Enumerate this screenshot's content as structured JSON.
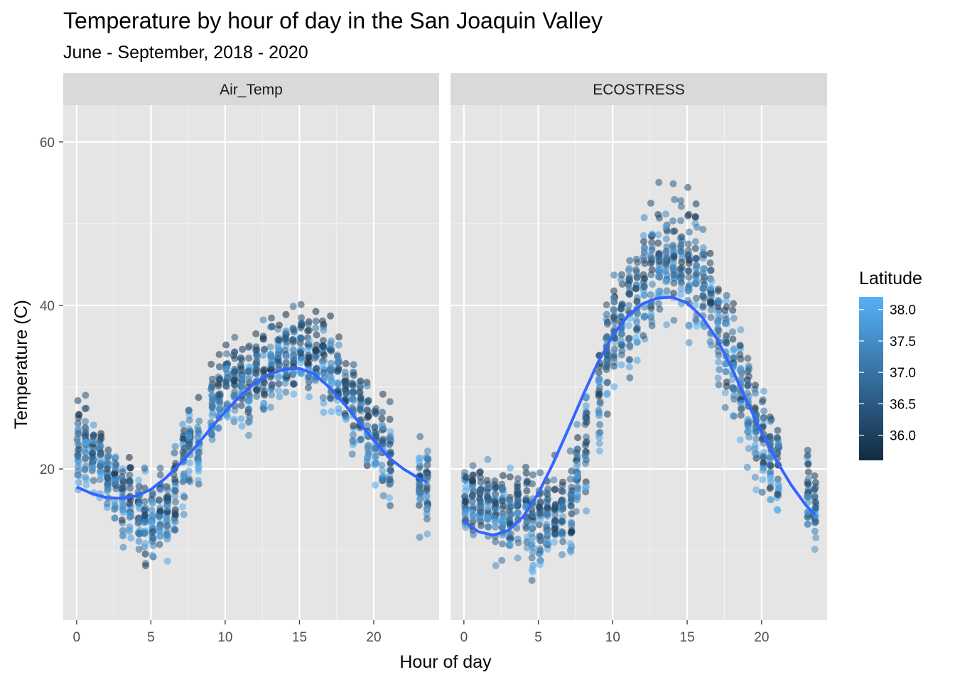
{
  "chart_data": {
    "type": "scatter",
    "title": "Temperature by hour of day in the San Joaquin Valley",
    "subtitle": "June - September, 2018 - 2020",
    "xlabel": "Hour of day",
    "ylabel": "Temperature (C)",
    "xlim": [
      -0.9,
      24.4
    ],
    "ylim": [
      1.5,
      64.5
    ],
    "x_ticks": [
      0,
      5,
      10,
      15,
      20
    ],
    "y_ticks": [
      20,
      40,
      60
    ],
    "grid": true,
    "point_color_scale": {
      "low": "#132B43",
      "high": "#56B1F7"
    },
    "smooth_color": "#3366FF",
    "panel_background": "#e5e5e5",
    "strip_background": "#d9d9d9",
    "legend": {
      "title": "Latitude",
      "position": "right",
      "range": [
        35.6,
        38.2
      ],
      "ticks": [
        "36.0",
        "36.5",
        "37.0",
        "37.5",
        "38.0"
      ],
      "tick_values": [
        36.0,
        36.5,
        37.0,
        37.5,
        38.0
      ]
    },
    "panels": [
      {
        "label": "Air_Temp",
        "hours": [
          0.1,
          0.6,
          1.1,
          1.6,
          2.1,
          2.6,
          3.1,
          3.6,
          4.2,
          4.6,
          5.1,
          5.6,
          6.1,
          6.6,
          7.2,
          7.6,
          8.2,
          9.1,
          9.6,
          10.1,
          10.6,
          11.1,
          11.6,
          12.1,
          12.6,
          13.1,
          13.6,
          14.1,
          14.6,
          15.1,
          15.6,
          16.1,
          16.6,
          17.1,
          17.6,
          18.1,
          18.6,
          19.1,
          19.6,
          20.1,
          20.6,
          21.1,
          23.1,
          23.6
        ],
        "center": [
          22.5,
          23.0,
          22.0,
          21.0,
          19.5,
          18.5,
          16.5,
          16.0,
          14.5,
          14.0,
          14.0,
          14.5,
          15.5,
          16.5,
          21.0,
          22.0,
          22.5,
          27.0,
          29.0,
          31.0,
          31.0,
          30.0,
          29.5,
          31.5,
          32.0,
          33.0,
          34.0,
          34.0,
          34.0,
          35.0,
          33.5,
          33.5,
          34.0,
          33.0,
          31.0,
          29.5,
          28.0,
          26.5,
          25.0,
          23.5,
          22.5,
          21.5,
          19.5,
          18.5
        ],
        "spread": [
          4.5,
          4.0,
          4.0,
          3.5,
          3.0,
          3.5,
          4.5,
          4.5,
          5.0,
          5.0,
          4.5,
          4.5,
          4.5,
          5.0,
          5.0,
          5.0,
          4.5,
          4.0,
          4.5,
          4.0,
          4.0,
          4.0,
          4.0,
          4.0,
          4.0,
          4.0,
          4.0,
          4.0,
          4.5,
          4.5,
          4.0,
          4.0,
          4.5,
          4.5,
          4.5,
          4.5,
          4.5,
          4.5,
          4.5,
          4.5,
          5.0,
          5.0,
          4.5,
          4.5
        ],
        "smooth_x": [
          0,
          1,
          2,
          3,
          4,
          5,
          6,
          7,
          8,
          9,
          10,
          11,
          12,
          13,
          14,
          15,
          16,
          17,
          18,
          19,
          20,
          21,
          22,
          23,
          23.6
        ],
        "smooth_y": [
          17.8,
          17.0,
          16.5,
          16.4,
          16.7,
          17.5,
          18.9,
          20.7,
          22.7,
          24.9,
          27.0,
          28.9,
          30.5,
          31.6,
          32.2,
          32.3,
          31.6,
          30.0,
          28.0,
          25.7,
          23.5,
          21.4,
          20.0,
          18.9,
          18.4
        ]
      },
      {
        "label": "ECOSTRESS",
        "hours": [
          0.1,
          0.6,
          1.1,
          1.6,
          2.1,
          2.6,
          3.1,
          3.6,
          4.2,
          4.6,
          5.1,
          5.6,
          6.1,
          6.6,
          7.2,
          7.6,
          8.2,
          9.1,
          9.6,
          10.1,
          10.6,
          11.1,
          11.6,
          12.1,
          12.6,
          13.1,
          13.6,
          14.1,
          14.6,
          15.1,
          15.6,
          16.1,
          16.6,
          17.1,
          17.6,
          18.1,
          18.6,
          19.1,
          19.6,
          20.1,
          20.6,
          21.1,
          23.1,
          23.6
        ],
        "center": [
          16.5,
          16.0,
          15.5,
          15.0,
          14.5,
          14.0,
          14.5,
          14.5,
          14.5,
          14.0,
          14.0,
          14.5,
          14.0,
          14.0,
          16.0,
          19.5,
          23.0,
          29.0,
          33.0,
          37.0,
          38.5,
          40.0,
          41.0,
          42.5,
          44.5,
          45.5,
          46.0,
          46.5,
          46.0,
          45.0,
          44.0,
          42.0,
          40.5,
          38.0,
          35.5,
          33.0,
          30.0,
          27.5,
          25.0,
          23.0,
          21.5,
          20.0,
          17.0,
          15.5
        ],
        "spread": [
          4.0,
          4.0,
          4.0,
          4.0,
          4.0,
          4.0,
          4.0,
          4.5,
          4.5,
          4.5,
          4.5,
          4.5,
          4.5,
          4.5,
          5.0,
          5.5,
          6.0,
          6.0,
          6.0,
          6.0,
          6.0,
          6.5,
          6.5,
          6.5,
          6.5,
          6.5,
          6.5,
          6.5,
          6.5,
          6.5,
          6.5,
          6.0,
          6.0,
          6.0,
          5.5,
          5.5,
          5.5,
          5.5,
          5.0,
          5.0,
          5.0,
          5.0,
          4.5,
          4.5
        ],
        "smooth_x": [
          0,
          1,
          2,
          3,
          4,
          5,
          6,
          7,
          8,
          9,
          10,
          11,
          12,
          13,
          14,
          15,
          16,
          17,
          18,
          19,
          20,
          21,
          22,
          23,
          23.6
        ],
        "smooth_y": [
          13.6,
          12.3,
          11.9,
          12.5,
          14.2,
          17.0,
          20.7,
          24.8,
          29.0,
          33.0,
          36.3,
          38.7,
          40.2,
          40.9,
          41.0,
          40.3,
          38.6,
          35.9,
          32.3,
          28.3,
          24.5,
          21.0,
          18.0,
          15.5,
          14.4
        ]
      }
    ]
  }
}
